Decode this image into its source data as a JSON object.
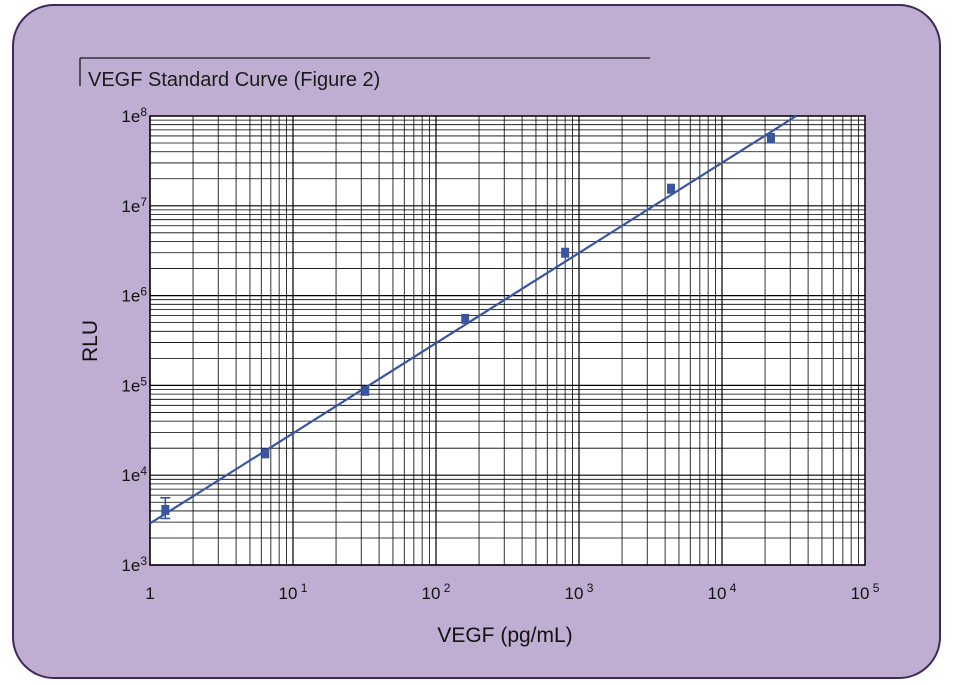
{
  "chart_data": {
    "type": "scatter",
    "title": "VEGF Standard Curve (Figure 2)",
    "xlabel": "VEGF (pg/mL)",
    "ylabel": "RLU",
    "x_scale": "log",
    "y_scale": "log",
    "xlim": [
      1,
      100000
    ],
    "ylim": [
      1000,
      100000000
    ],
    "grid": true,
    "legend": "none",
    "x_ticks": [
      {
        "value": 1,
        "label": "1"
      },
      {
        "value": 10,
        "base": "10",
        "exp": "1"
      },
      {
        "value": 100,
        "base": "10",
        "exp": "2"
      },
      {
        "value": 1000,
        "base": "10",
        "exp": "3"
      },
      {
        "value": 10000,
        "base": "10",
        "exp": "4"
      },
      {
        "value": 100000,
        "base": "10",
        "exp": "5"
      }
    ],
    "y_ticks": [
      {
        "value": 1000,
        "base": "1e",
        "exp": "3"
      },
      {
        "value": 10000,
        "base": "1e",
        "exp": "4"
      },
      {
        "value": 100000,
        "base": "1e",
        "exp": "5"
      },
      {
        "value": 1000000,
        "base": "1e",
        "exp": "6"
      },
      {
        "value": 10000000,
        "base": "1e",
        "exp": "7"
      },
      {
        "value": 100000000,
        "base": "1e",
        "exp": "8"
      }
    ],
    "series": [
      {
        "points": [
          {
            "x": 1.28,
            "y": 4100,
            "err_low": 3300,
            "err_high": 5600
          },
          {
            "x": 6.4,
            "y": 17500
          },
          {
            "x": 32,
            "y": 87000
          },
          {
            "x": 160,
            "y": 550000
          },
          {
            "x": 800,
            "y": 3000000
          },
          {
            "x": 4400,
            "y": 15500000
          },
          {
            "x": 22000,
            "y": 57000000
          }
        ]
      }
    ],
    "fit_line": {
      "x": [
        1,
        33000
      ],
      "y": [
        2900,
        100000000
      ]
    },
    "colors": {
      "background": "#c0aed2",
      "border": "#3c2a5c",
      "plot_bg": "#ffffff",
      "grid": "#000000",
      "series": "#3a55a0"
    }
  }
}
